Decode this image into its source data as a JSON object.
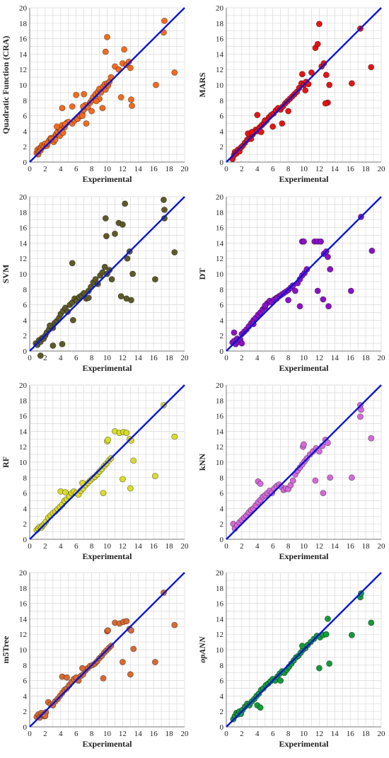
{
  "chart_data": [
    {
      "type": "scatter",
      "ylabel": "Quadratic Function (CRA)",
      "ylabel_italic": false,
      "xlabel": "Experimental",
      "xlim": [
        0,
        20
      ],
      "ylim": [
        0,
        20
      ],
      "ticks": [
        0,
        2,
        4,
        6,
        8,
        10,
        12,
        14,
        16,
        18,
        20
      ],
      "color": "#f26b1d",
      "x": [
        0.9,
        1.0,
        1.1,
        1.2,
        1.3,
        1.4,
        1.5,
        1.6,
        1.8,
        2.0,
        2.2,
        2.5,
        2.7,
        3.0,
        3.2,
        3.4,
        3.6,
        3.8,
        4.0,
        4.2,
        4.5,
        4.8,
        3.1,
        3.3,
        3.9,
        4.3,
        5.0,
        5.5,
        5.8,
        6.2,
        6.5,
        6.8,
        7.0,
        7.2,
        7.5,
        7.8,
        8.0,
        8.2,
        8.5,
        8.8,
        9.0,
        9.2,
        9.5,
        9.7,
        9.8,
        10.0,
        10.1,
        10.3,
        10.5,
        11.0,
        11.5,
        12.0,
        12.2,
        12.5,
        12.8,
        13.0,
        13.2,
        9.8,
        10.0,
        7.0,
        6.0,
        4.2,
        5.5,
        16.3,
        17.3,
        17.4,
        18.7,
        11.8,
        13.1,
        8.0,
        9.0,
        6.8,
        7.3,
        3.5,
        2.8,
        2.3,
        4.6,
        6.9,
        8.6,
        9.4
      ],
      "y": [
        1.2,
        1.6,
        1.0,
        1.4,
        1.8,
        1.5,
        1.9,
        2.2,
        2.0,
        2.4,
        2.1,
        2.8,
        3.1,
        2.7,
        3.3,
        3.6,
        3.9,
        4.4,
        4.2,
        4.8,
        4.5,
        5.1,
        2.6,
        2.9,
        3.4,
        3.8,
        5.2,
        5.0,
        5.4,
        5.6,
        6.0,
        6.3,
        6.8,
        7.4,
        7.1,
        7.7,
        8.0,
        8.4,
        8.8,
        9.1,
        9.5,
        9.0,
        9.8,
        10.1,
        9.4,
        10.2,
        9.9,
        10.4,
        11.0,
        12.4,
        12.0,
        12.8,
        14.6,
        12.6,
        13.0,
        12.2,
        7.3,
        14.3,
        16.2,
        8.8,
        8.7,
        7.0,
        7.2,
        10.0,
        16.8,
        18.3,
        11.6,
        8.4,
        8.1,
        6.6,
        8.2,
        6.0,
        5.0,
        4.6,
        3.0,
        2.4,
        4.9,
        7.2,
        7.9,
        7.0
      ]
    },
    {
      "type": "scatter",
      "ylabel": "MARS",
      "ylabel_italic": false,
      "xlabel": "Experimental",
      "xlim": [
        0,
        20
      ],
      "ylim": [
        0,
        20
      ],
      "ticks": [
        0,
        2,
        4,
        6,
        8,
        10,
        12,
        14,
        16,
        18,
        20
      ],
      "color": "#e51414",
      "x": [
        0.8,
        1.0,
        1.1,
        1.3,
        1.5,
        1.7,
        1.9,
        2.1,
        2.4,
        2.7,
        3.0,
        3.2,
        3.4,
        3.6,
        3.8,
        4.0,
        4.3,
        4.6,
        4.9,
        5.2,
        5.5,
        5.8,
        6.1,
        6.4,
        6.7,
        7.0,
        7.3,
        7.6,
        7.9,
        8.2,
        8.5,
        8.8,
        9.1,
        9.4,
        9.7,
        10.0,
        10.3,
        10.6,
        11.0,
        11.5,
        12.0,
        12.3,
        12.6,
        12.9,
        13.1,
        13.3,
        16.2,
        17.3,
        18.7,
        4.0,
        4.5,
        5.0,
        6.0,
        7.2,
        8.0,
        2.8,
        3.3,
        9.8,
        12.8,
        10.2,
        11.8
      ],
      "y": [
        0.4,
        0.9,
        1.3,
        1.1,
        1.6,
        1.4,
        1.9,
        2.1,
        2.5,
        2.9,
        3.3,
        3.0,
        3.6,
        3.9,
        4.2,
        4.0,
        4.5,
        4.8,
        5.1,
        5.4,
        5.8,
        6.1,
        6.3,
        6.7,
        7.0,
        6.8,
        7.2,
        7.6,
        7.9,
        8.2,
        8.5,
        8.8,
        9.1,
        9.6,
        10.2,
        10.0,
        10.4,
        10.1,
        11.6,
        14.8,
        17.9,
        12.4,
        12.8,
        11.3,
        7.7,
        10.0,
        10.2,
        17.3,
        12.3,
        6.1,
        3.9,
        5.4,
        4.6,
        5.0,
        6.6,
        3.7,
        3.9,
        11.4,
        7.6,
        9.3,
        15.3
      ]
    },
    {
      "type": "scatter",
      "ylabel": "SVM",
      "ylabel_italic": false,
      "xlabel": "Experimental",
      "xlim": [
        0,
        20
      ],
      "ylim": [
        0,
        20
      ],
      "ticks": [
        0,
        2,
        4,
        6,
        8,
        10,
        12,
        14,
        16,
        18,
        20
      ],
      "color": "#5c5a28",
      "x": [
        0.8,
        1.0,
        1.2,
        1.4,
        1.6,
        1.8,
        2.0,
        2.2,
        2.5,
        2.8,
        3.0,
        3.2,
        3.5,
        3.8,
        4.0,
        4.3,
        4.6,
        4.9,
        5.2,
        5.5,
        5.8,
        6.1,
        6.4,
        6.7,
        7.0,
        7.3,
        7.6,
        7.9,
        8.2,
        8.5,
        8.8,
        9.1,
        9.4,
        9.7,
        10.0,
        10.3,
        10.6,
        11.0,
        11.5,
        12.0,
        12.3,
        12.6,
        12.9,
        13.1,
        13.3,
        16.2,
        17.4,
        17.4,
        17.3,
        18.7,
        1.4,
        4.2,
        5.5,
        7.6,
        9.8,
        9.9,
        12.5,
        11.8,
        3.0,
        2.6,
        5.6
      ],
      "y": [
        1.0,
        0.8,
        1.4,
        1.2,
        1.7,
        1.6,
        2.0,
        2.4,
        2.8,
        3.2,
        3.0,
        3.6,
        3.9,
        4.3,
        4.8,
        5.2,
        5.6,
        5.1,
        6.0,
        6.3,
        6.8,
        6.5,
        7.0,
        7.2,
        7.5,
        6.8,
        7.8,
        8.3,
        8.9,
        9.3,
        8.7,
        9.8,
        10.2,
        10.9,
        10.0,
        10.5,
        9.3,
        15.2,
        16.6,
        16.4,
        19.1,
        12.0,
        12.9,
        6.6,
        10.0,
        9.3,
        17.2,
        18.3,
        19.6,
        12.8,
        -0.6,
        0.9,
        11.4,
        6.9,
        17.2,
        14.9,
        6.8,
        7.1,
        0.7,
        3.3,
        4.0
      ]
    },
    {
      "type": "scatter",
      "ylabel": "DT",
      "ylabel_italic": false,
      "xlabel": "Experimental",
      "xlim": [
        0,
        20
      ],
      "ylim": [
        0,
        20
      ],
      "ticks": [
        0,
        2,
        4,
        6,
        8,
        10,
        12,
        14,
        16,
        18,
        20
      ],
      "color": "#8a12c7",
      "x": [
        0.8,
        1.0,
        1.2,
        1.4,
        1.6,
        1.8,
        2.0,
        2.3,
        2.6,
        2.9,
        3.2,
        3.5,
        3.8,
        4.1,
        4.4,
        4.7,
        5.0,
        5.3,
        5.6,
        5.9,
        6.2,
        6.5,
        6.8,
        7.1,
        7.4,
        7.7,
        8.0,
        8.3,
        8.6,
        8.9,
        9.2,
        9.5,
        9.8,
        10.1,
        10.4,
        9.8,
        10.0,
        11.4,
        11.8,
        12.2,
        12.6,
        12.9,
        13.1,
        13.2,
        13.4,
        16.1,
        17.4,
        18.8,
        1.0,
        2.0,
        3.5,
        5.0,
        6.5,
        8.0,
        9.5,
        11.8,
        12.5
      ],
      "y": [
        1.1,
        1.3,
        0.9,
        1.6,
        1.2,
        1.5,
        2.2,
        2.5,
        2.8,
        3.2,
        3.6,
        4.0,
        4.3,
        4.7,
        5.0,
        5.4,
        5.7,
        6.2,
        6.5,
        6.3,
        6.7,
        6.9,
        7.1,
        7.3,
        7.5,
        7.7,
        7.9,
        8.2,
        8.5,
        7.8,
        8.8,
        9.3,
        9.8,
        10.1,
        10.6,
        14.2,
        14.2,
        14.2,
        14.2,
        14.2,
        12.6,
        12.9,
        12.2,
        5.8,
        10.6,
        7.8,
        17.4,
        13.0,
        2.4,
        1.0,
        3.5,
        5.9,
        6.8,
        6.6,
        5.8,
        7.8,
        6.7
      ]
    },
    {
      "type": "scatter",
      "ylabel": "RF",
      "ylabel_italic": false,
      "xlabel": "Experimental",
      "xlim": [
        0,
        20
      ],
      "ylim": [
        0,
        20
      ],
      "ticks": [
        0,
        2,
        4,
        6,
        8,
        10,
        12,
        14,
        16,
        18,
        20
      ],
      "color": "#d8dc2a",
      "x": [
        0.9,
        1.1,
        1.3,
        1.5,
        1.7,
        1.9,
        2.1,
        2.4,
        2.7,
        3.0,
        3.3,
        3.6,
        3.9,
        4.2,
        4.5,
        4.8,
        5.1,
        5.4,
        5.7,
        6.0,
        6.3,
        6.6,
        6.9,
        7.2,
        7.5,
        7.8,
        8.1,
        8.4,
        8.7,
        9.0,
        9.3,
        9.6,
        9.9,
        10.2,
        10.5,
        11.0,
        11.6,
        12.1,
        12.5,
        12.9,
        13.1,
        13.4,
        16.2,
        17.3,
        18.7,
        10.0,
        10.1,
        4.0,
        4.6,
        6.8,
        9.5,
        12.0,
        13.0
      ],
      "y": [
        1.2,
        1.4,
        1.6,
        1.5,
        1.8,
        2.0,
        2.3,
        2.8,
        3.1,
        3.4,
        3.6,
        3.9,
        4.2,
        4.5,
        5.0,
        5.2,
        5.6,
        6.0,
        6.2,
        6.0,
        5.8,
        6.3,
        6.6,
        7.0,
        7.3,
        7.6,
        7.9,
        8.1,
        8.4,
        8.8,
        9.1,
        9.5,
        9.8,
        10.2,
        10.5,
        14.0,
        13.8,
        13.9,
        13.8,
        13.0,
        12.8,
        10.2,
        8.2,
        17.4,
        13.3,
        12.7,
        12.9,
        6.2,
        6.1,
        7.3,
        6.0,
        7.8,
        6.6
      ]
    },
    {
      "type": "scatter",
      "ylabel": "kNN",
      "ylabel_italic": false,
      "xlabel": "Experimental",
      "xlim": [
        0,
        20
      ],
      "ylim": [
        0,
        20
      ],
      "ticks": [
        0,
        2,
        4,
        6,
        8,
        10,
        12,
        14,
        16,
        18,
        20
      ],
      "color": "#d46ad8",
      "x": [
        0.9,
        1.1,
        1.4,
        1.7,
        2.0,
        2.3,
        2.6,
        2.9,
        3.2,
        3.5,
        3.8,
        4.1,
        4.4,
        4.7,
        5.0,
        5.3,
        5.6,
        5.9,
        6.2,
        6.5,
        6.8,
        7.1,
        7.4,
        7.7,
        8.0,
        8.3,
        8.6,
        8.9,
        9.2,
        9.5,
        9.8,
        10.1,
        10.4,
        10.8,
        11.2,
        11.6,
        12.0,
        12.4,
        12.8,
        13.1,
        13.4,
        16.2,
        17.3,
        17.4,
        17.3,
        18.7,
        4.1,
        4.4,
        9.9,
        10.0,
        12.5,
        11.5
      ],
      "y": [
        2.0,
        1.4,
        1.8,
        2.2,
        2.5,
        2.8,
        3.1,
        3.5,
        3.8,
        4.0,
        4.4,
        4.8,
        5.1,
        5.5,
        5.7,
        6.0,
        6.3,
        6.0,
        6.6,
        6.9,
        7.1,
        6.8,
        6.4,
        6.6,
        6.5,
        7.0,
        7.6,
        8.4,
        8.9,
        9.3,
        9.7,
        10.1,
        10.5,
        11.0,
        11.4,
        11.8,
        11.4,
        12.1,
        12.9,
        12.5,
        8.0,
        8.0,
        15.9,
        16.8,
        17.4,
        13.1,
        7.5,
        7.2,
        12.0,
        12.3,
        6.0,
        7.6
      ]
    },
    {
      "type": "scatter",
      "ylabel": "m5Tree",
      "ylabel_italic": false,
      "xlabel": "Experimental",
      "xlim": [
        0,
        20
      ],
      "ylim": [
        0,
        20
      ],
      "ticks": [
        0,
        2,
        4,
        6,
        8,
        10,
        12,
        14,
        16,
        18,
        20
      ],
      "color": "#d66a32",
      "x": [
        0.9,
        1.1,
        1.3,
        1.5,
        1.7,
        1.9,
        2.1,
        2.4,
        2.7,
        3.0,
        3.3,
        3.6,
        3.9,
        4.2,
        4.5,
        4.8,
        5.1,
        5.4,
        5.7,
        6.0,
        6.3,
        6.6,
        6.9,
        7.2,
        7.5,
        7.8,
        8.1,
        8.4,
        8.7,
        9.0,
        9.3,
        9.6,
        9.9,
        10.2,
        10.5,
        11.0,
        11.6,
        12.1,
        12.5,
        12.9,
        13.1,
        13.4,
        16.2,
        17.3,
        18.7,
        10.0,
        10.1,
        4.2,
        4.8,
        6.8,
        9.5,
        12.0,
        13.0,
        2.0
      ],
      "y": [
        1.3,
        1.6,
        1.2,
        1.8,
        1.5,
        1.4,
        1.9,
        3.2,
        2.9,
        2.8,
        3.3,
        3.6,
        4.0,
        4.4,
        4.8,
        5.0,
        5.4,
        5.8,
        6.2,
        6.4,
        6.0,
        6.6,
        6.8,
        7.3,
        7.6,
        7.9,
        8.0,
        8.2,
        8.5,
        8.9,
        9.2,
        9.6,
        9.9,
        10.2,
        10.5,
        13.5,
        13.4,
        13.6,
        13.7,
        12.7,
        12.5,
        10.1,
        8.4,
        17.4,
        13.2,
        12.4,
        12.5,
        6.5,
        6.4,
        7.6,
        6.3,
        8.4,
        6.8,
        1.4
      ]
    },
    {
      "type": "scatter",
      "ylabel": "opANN",
      "ylabel_italic": true,
      "xlabel": "Experimental",
      "xlim": [
        0,
        20
      ],
      "ylim": [
        0,
        20
      ],
      "ticks": [
        0,
        2,
        4,
        6,
        8,
        10,
        12,
        14,
        16,
        18,
        20
      ],
      "color": "#139a3a",
      "x": [
        0.9,
        1.1,
        1.3,
        1.5,
        1.7,
        1.9,
        2.1,
        2.4,
        2.7,
        3.0,
        3.3,
        3.6,
        3.9,
        4.2,
        4.5,
        4.8,
        5.1,
        5.4,
        5.7,
        6.0,
        6.3,
        6.6,
        6.9,
        7.2,
        7.5,
        7.8,
        8.1,
        8.4,
        8.7,
        9.0,
        9.3,
        9.6,
        9.9,
        10.2,
        10.5,
        10.9,
        11.3,
        11.7,
        12.1,
        12.5,
        12.9,
        13.1,
        13.3,
        16.2,
        17.3,
        17.4,
        18.7,
        4.0,
        4.4,
        7.0,
        9.8,
        12.0
      ],
      "y": [
        1.0,
        1.4,
        1.8,
        1.6,
        2.0,
        1.7,
        2.2,
        2.6,
        3.0,
        2.8,
        3.3,
        3.6,
        4.0,
        4.3,
        4.8,
        5.0,
        5.4,
        5.6,
        5.9,
        6.2,
        6.0,
        6.5,
        6.9,
        7.2,
        7.0,
        7.4,
        7.8,
        8.2,
        8.6,
        9.0,
        9.2,
        9.6,
        10.0,
        10.2,
        10.6,
        11.0,
        11.4,
        11.8,
        11.6,
        11.9,
        12.0,
        14.0,
        8.2,
        11.9,
        16.8,
        17.3,
        13.5,
        2.8,
        2.5,
        6.0,
        10.5,
        7.6
      ]
    }
  ]
}
